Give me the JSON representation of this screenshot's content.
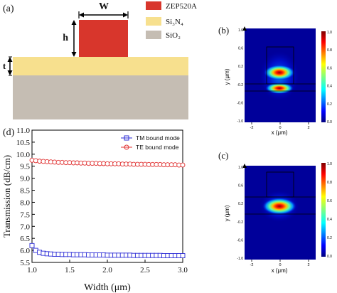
{
  "panel_a": {
    "label": "(a)",
    "dim_w": "W",
    "dim_h": "h",
    "dim_t": "t",
    "legend": [
      {
        "name": "ZEP520A",
        "color": "#d8362c"
      },
      {
        "name": "Si₃N₄",
        "color": "#f7e08e"
      },
      {
        "name": "SiO₂",
        "color": "#c5bdb3"
      }
    ]
  },
  "panel_b": {
    "label": "(b)",
    "ylabel": "y (μm)",
    "xlabel": "x (μm)",
    "xticks": [
      "-2",
      "0",
      "2"
    ],
    "yticks": [
      "1.0",
      "0.6",
      "0.2",
      "-0.2",
      "-0.6",
      "-1.0"
    ],
    "cbar_ticks": [
      "1.0",
      "0.8",
      "0.6",
      "0.4",
      "0.2",
      "0.0"
    ]
  },
  "panel_c": {
    "label": "(c)",
    "ylabel": "y (μm)",
    "xlabel": "x (μm)",
    "xticks": [
      "-2",
      "0",
      "2"
    ],
    "yticks": [
      "1.0",
      "0.6",
      "0.2",
      "-0.2",
      "-0.6",
      "-1.0"
    ],
    "cbar_ticks": [
      "1.0",
      "0.8",
      "0.6",
      "0.4",
      "0.2",
      "0.0"
    ]
  },
  "panel_d": {
    "label": "(d)"
  },
  "chart_data": {
    "type": "line",
    "title": "",
    "xlabel": "Width (μm)",
    "ylabel": "Transmission (dB/cm)",
    "xlim": [
      1.0,
      3.0
    ],
    "ylim": [
      5.5,
      11.0
    ],
    "xticks": [
      "1.0",
      "1.5",
      "2.0",
      "2.5",
      "3.0"
    ],
    "yticks": [
      "5.5",
      "6.0",
      "6.5",
      "7.0",
      "7.5",
      "8.0",
      "8.5",
      "9.0",
      "9.5",
      "10.0",
      "10.5",
      "11.0"
    ],
    "legend_position": "top-right",
    "grid": false,
    "series": [
      {
        "name": "TM bound mode",
        "color": "#2b2bd6",
        "marker": "square",
        "x": [
          1.0,
          1.05,
          1.1,
          1.15,
          1.2,
          1.25,
          1.3,
          1.35,
          1.4,
          1.45,
          1.5,
          1.55,
          1.6,
          1.65,
          1.7,
          1.75,
          1.8,
          1.85,
          1.9,
          1.95,
          2.0,
          2.05,
          2.1,
          2.15,
          2.2,
          2.25,
          2.3,
          2.35,
          2.4,
          2.45,
          2.5,
          2.55,
          2.6,
          2.65,
          2.7,
          2.75,
          2.8,
          2.85,
          2.9,
          2.95,
          3.0
        ],
        "y": [
          6.2,
          6.0,
          5.92,
          5.88,
          5.86,
          5.85,
          5.84,
          5.84,
          5.83,
          5.83,
          5.83,
          5.82,
          5.82,
          5.82,
          5.82,
          5.81,
          5.81,
          5.81,
          5.81,
          5.81,
          5.8,
          5.8,
          5.8,
          5.8,
          5.8,
          5.8,
          5.8,
          5.79,
          5.79,
          5.79,
          5.79,
          5.79,
          5.79,
          5.79,
          5.79,
          5.78,
          5.78,
          5.78,
          5.78,
          5.78,
          5.78
        ]
      },
      {
        "name": "TE bound mode",
        "color": "#e03030",
        "marker": "circle",
        "x": [
          1.0,
          1.05,
          1.1,
          1.15,
          1.2,
          1.25,
          1.3,
          1.35,
          1.4,
          1.45,
          1.5,
          1.55,
          1.6,
          1.65,
          1.7,
          1.75,
          1.8,
          1.85,
          1.9,
          1.95,
          2.0,
          2.05,
          2.1,
          2.15,
          2.2,
          2.25,
          2.3,
          2.35,
          2.4,
          2.45,
          2.5,
          2.55,
          2.6,
          2.65,
          2.7,
          2.75,
          2.8,
          2.85,
          2.9,
          2.95,
          3.0
        ],
        "y": [
          9.75,
          9.73,
          9.71,
          9.7,
          9.69,
          9.68,
          9.67,
          9.66,
          9.66,
          9.65,
          9.65,
          9.64,
          9.64,
          9.63,
          9.63,
          9.62,
          9.62,
          9.62,
          9.61,
          9.61,
          9.6,
          9.6,
          9.6,
          9.6,
          9.59,
          9.59,
          9.59,
          9.58,
          9.58,
          9.58,
          9.58,
          9.57,
          9.57,
          9.57,
          9.57,
          9.56,
          9.56,
          9.56,
          9.56,
          9.55,
          9.55
        ]
      }
    ]
  }
}
